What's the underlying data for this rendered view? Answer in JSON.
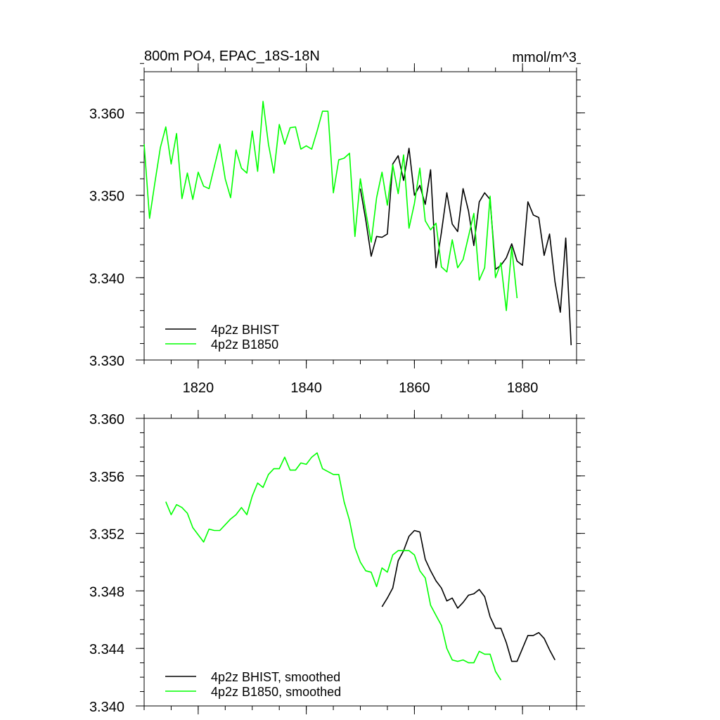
{
  "chart_data": [
    {
      "type": "line",
      "title": "800m PO4, EPAC_18S-18N",
      "units": "mmol/m^3",
      "xlim": [
        1810,
        1890
      ],
      "ylim": [
        3.33,
        3.365
      ],
      "x_ticks": [
        1820,
        1840,
        1860,
        1880
      ],
      "x_tick_labels": [
        "1820",
        "1840",
        "1860",
        "1880"
      ],
      "y_ticks": [
        3.33,
        3.34,
        3.35,
        3.36
      ],
      "y_tick_labels": [
        "3.330",
        "3.340",
        "3.350",
        "3.360"
      ],
      "legend": "bottom-left",
      "series": [
        {
          "name": "4p2z BHIST",
          "color": "#000000",
          "x": [
            1850,
            1851,
            1852,
            1853,
            1854,
            1855,
            1856,
            1857,
            1858,
            1859,
            1860,
            1861,
            1862,
            1863,
            1864,
            1865,
            1866,
            1867,
            1868,
            1869,
            1870,
            1871,
            1872,
            1873,
            1874,
            1875,
            1876,
            1877,
            1878,
            1879,
            1880,
            1881,
            1882,
            1883,
            1884,
            1885,
            1886,
            1887,
            1888,
            1889
          ],
          "y": [
            3.3508,
            3.347,
            3.3426,
            3.345,
            3.3449,
            3.3453,
            3.3538,
            3.3548,
            3.3518,
            3.3557,
            3.35,
            3.3512,
            3.3489,
            3.3531,
            3.3412,
            3.3455,
            3.3503,
            3.3465,
            3.3456,
            3.3508,
            3.3481,
            3.3439,
            3.3492,
            3.3503,
            3.3495,
            3.341,
            3.3415,
            3.3424,
            3.3441,
            3.342,
            3.3415,
            3.3492,
            3.3476,
            3.3473,
            3.3427,
            3.3453,
            3.3395,
            3.3358,
            3.3448,
            3.3318
          ]
        },
        {
          "name": "4p2z B1850",
          "color": "#00ff00",
          "x": [
            1810,
            1811,
            1812,
            1813,
            1814,
            1815,
            1816,
            1817,
            1818,
            1819,
            1820,
            1821,
            1822,
            1823,
            1824,
            1825,
            1826,
            1827,
            1828,
            1829,
            1830,
            1831,
            1832,
            1833,
            1834,
            1835,
            1836,
            1837,
            1838,
            1839,
            1840,
            1841,
            1842,
            1843,
            1844,
            1845,
            1846,
            1847,
            1848,
            1849,
            1850,
            1851,
            1852,
            1853,
            1854,
            1855,
            1856,
            1857,
            1858,
            1859,
            1860,
            1861,
            1862,
            1863,
            1864,
            1865,
            1866,
            1867,
            1868,
            1869,
            1870,
            1871,
            1872,
            1873,
            1874,
            1875,
            1876,
            1877,
            1878,
            1879
          ],
          "y": [
            3.3562,
            3.3472,
            3.3516,
            3.3558,
            3.3583,
            3.3538,
            3.3575,
            3.3496,
            3.3527,
            3.3495,
            3.3528,
            3.3511,
            3.3508,
            3.3535,
            3.3562,
            3.352,
            3.3497,
            3.3555,
            3.3533,
            3.3527,
            3.3578,
            3.3529,
            3.3614,
            3.3562,
            3.3527,
            3.3586,
            3.3562,
            3.3582,
            3.3583,
            3.3556,
            3.356,
            3.3556,
            3.3578,
            3.3602,
            3.3602,
            3.3503,
            3.3543,
            3.3545,
            3.3551,
            3.345,
            3.352,
            3.348,
            3.3443,
            3.3497,
            3.3528,
            3.3488,
            3.3537,
            3.3502,
            3.3549,
            3.346,
            3.349,
            3.3533,
            3.3469,
            3.3458,
            3.3466,
            3.3413,
            3.3407,
            3.3446,
            3.3412,
            3.3422,
            3.345,
            3.3478,
            3.3397,
            3.3412,
            3.3499,
            3.34,
            3.3418,
            3.336,
            3.3437,
            3.3375
          ]
        }
      ]
    },
    {
      "type": "line",
      "xlim": [
        1810,
        1890
      ],
      "ylim": [
        3.34,
        3.36
      ],
      "x_ticks": [
        1820,
        1840,
        1860,
        1880
      ],
      "y_ticks": [
        3.34,
        3.344,
        3.348,
        3.352,
        3.356,
        3.36
      ],
      "y_tick_labels": [
        "3.340",
        "3.344",
        "3.348",
        "3.352",
        "3.356",
        "3.360"
      ],
      "legend": "bottom-left",
      "series": [
        {
          "name": "4p2z BHIST, smoothed",
          "color": "#000000",
          "x": [
            1854,
            1855,
            1856,
            1857,
            1858,
            1859,
            1860,
            1861,
            1862,
            1863,
            1864,
            1865,
            1866,
            1867,
            1868,
            1869,
            1870,
            1871,
            1872,
            1873,
            1874,
            1875,
            1876,
            1877,
            1878,
            1879,
            1880,
            1881,
            1882,
            1883,
            1884,
            1885,
            1886
          ],
          "y": [
            3.3469,
            3.3475,
            3.3482,
            3.3501,
            3.3508,
            3.3518,
            3.3522,
            3.3521,
            3.3502,
            3.3494,
            3.3487,
            3.3482,
            3.3473,
            3.3475,
            3.3468,
            3.3472,
            3.3477,
            3.3478,
            3.3481,
            3.3476,
            3.3462,
            3.3454,
            3.3454,
            3.3444,
            3.3431,
            3.3431,
            3.344,
            3.3449,
            3.3449,
            3.3451,
            3.3447,
            3.3439,
            3.3432
          ]
        },
        {
          "name": "4p2z B1850, smoothed",
          "color": "#00ff00",
          "x": [
            1814,
            1815,
            1816,
            1817,
            1818,
            1819,
            1820,
            1821,
            1822,
            1823,
            1824,
            1825,
            1826,
            1827,
            1828,
            1829,
            1830,
            1831,
            1832,
            1833,
            1834,
            1835,
            1836,
            1837,
            1838,
            1839,
            1840,
            1841,
            1842,
            1843,
            1844,
            1845,
            1846,
            1847,
            1848,
            1849,
            1850,
            1851,
            1852,
            1853,
            1854,
            1855,
            1856,
            1857,
            1858,
            1859,
            1860,
            1861,
            1862,
            1863,
            1864,
            1865,
            1866,
            1867,
            1868,
            1869,
            1870,
            1871,
            1872,
            1873,
            1874,
            1875,
            1876
          ],
          "y": [
            3.3542,
            3.3533,
            3.354,
            3.3538,
            3.3534,
            3.3524,
            3.3519,
            3.3514,
            3.3523,
            3.3522,
            3.3522,
            3.3526,
            3.353,
            3.3533,
            3.3538,
            3.3533,
            3.3546,
            3.3555,
            3.3552,
            3.3561,
            3.3565,
            3.3565,
            3.3573,
            3.3564,
            3.3564,
            3.3569,
            3.3568,
            3.3573,
            3.3576,
            3.3565,
            3.3563,
            3.3561,
            3.3561,
            3.3542,
            3.3529,
            3.351,
            3.35,
            3.3494,
            3.3493,
            3.3483,
            3.3496,
            3.3493,
            3.3505,
            3.3508,
            3.3508,
            3.3508,
            3.3505,
            3.3494,
            3.3489,
            3.347,
            3.3463,
            3.3456,
            3.344,
            3.3432,
            3.3431,
            3.3432,
            3.343,
            3.343,
            3.3438,
            3.3436,
            3.3436,
            3.3424,
            3.3418
          ]
        }
      ]
    }
  ]
}
